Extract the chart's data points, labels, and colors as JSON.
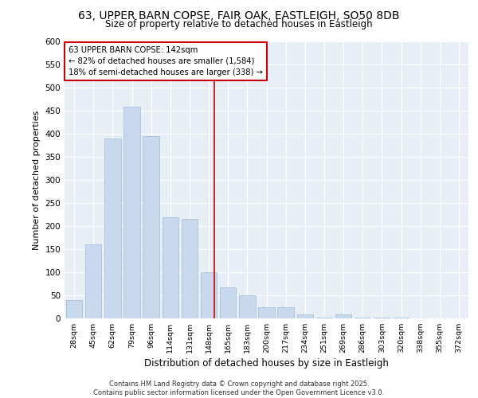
{
  "title1": "63, UPPER BARN COPSE, FAIR OAK, EASTLEIGH, SO50 8DB",
  "title2": "Size of property relative to detached houses in Eastleigh",
  "xlabel": "Distribution of detached houses by size in Eastleigh",
  "ylabel": "Number of detached properties",
  "categories": [
    "28sqm",
    "45sqm",
    "62sqm",
    "79sqm",
    "96sqm",
    "114sqm",
    "131sqm",
    "148sqm",
    "165sqm",
    "183sqm",
    "200sqm",
    "217sqm",
    "234sqm",
    "251sqm",
    "269sqm",
    "286sqm",
    "303sqm",
    "320sqm",
    "338sqm",
    "355sqm",
    "372sqm"
  ],
  "values": [
    40,
    160,
    390,
    460,
    395,
    220,
    215,
    100,
    68,
    50,
    25,
    25,
    8,
    2,
    8,
    2,
    2,
    1,
    0,
    0,
    0
  ],
  "bar_color": "#c8d9ee",
  "bar_edge_color": "#9eb8d8",
  "vline_x": 7.3,
  "vline_color": "#cc0000",
  "annotation_title": "63 UPPER BARN COPSE: 142sqm",
  "annotation_line1": "← 82% of detached houses are smaller (1,584)",
  "annotation_line2": "18% of semi-detached houses are larger (338) →",
  "annotation_box_color": "#cc0000",
  "background_color": "#e8eef5",
  "grid_color": "#ffffff",
  "footer": "Contains HM Land Registry data © Crown copyright and database right 2025.\nContains public sector information licensed under the Open Government Licence v3.0.",
  "ylim": [
    0,
    600
  ],
  "yticks": [
    0,
    50,
    100,
    150,
    200,
    250,
    300,
    350,
    400,
    450,
    500,
    550,
    600
  ]
}
